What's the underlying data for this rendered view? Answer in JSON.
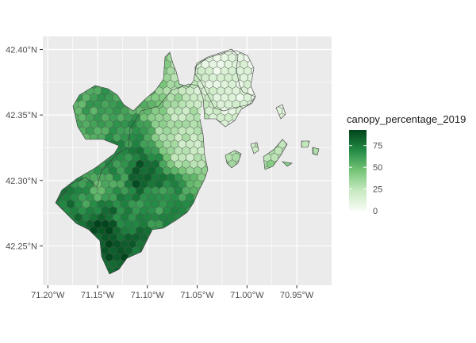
{
  "chart_data": {
    "type": "heatmap",
    "subtype": "hexbin-choropleth-map",
    "title": "",
    "xlabel": "",
    "ylabel": "",
    "x_ticks": [
      "71.20°W",
      "71.15°W",
      "71.10°W",
      "71.05°W",
      "71.00°W",
      "70.95°W"
    ],
    "x_tick_values": [
      -71.2,
      -71.15,
      -71.1,
      -71.05,
      -71.0,
      -70.95
    ],
    "y_ticks": [
      "42.40°N",
      "42.35°N",
      "42.30°N",
      "42.25°N"
    ],
    "y_tick_values": [
      42.4,
      42.35,
      42.3,
      42.25
    ],
    "xlim": [
      -71.205,
      -70.915
    ],
    "ylim": [
      42.22,
      42.41
    ],
    "grid": true,
    "panel_background": "#ebebeb",
    "grid_color": "#ffffff",
    "cell_border_color": "#555555",
    "legend": {
      "title": "canopy_percentage_2019",
      "ticks": [
        "0",
        "25",
        "50",
        "75"
      ],
      "tick_values": [
        0,
        25,
        50,
        75
      ],
      "range": [
        0,
        93
      ],
      "placement": "right",
      "colors": [
        "#f7fcf5",
        "#c7e9c0",
        "#74c476",
        "#238b45",
        "#00441b"
      ]
    },
    "hotspots": [
      {
        "lon": -71.14,
        "lat": 42.265,
        "value": 90
      },
      {
        "lon": -71.135,
        "lat": 42.26,
        "value": 88
      },
      {
        "lon": -71.125,
        "lat": 42.27,
        "value": 70
      },
      {
        "lon": -71.11,
        "lat": 42.303,
        "value": 88
      },
      {
        "lon": -71.128,
        "lat": 42.31,
        "value": 68
      },
      {
        "lon": -71.13,
        "lat": 42.3,
        "value": 62
      },
      {
        "lon": -71.185,
        "lat": 42.288,
        "value": 75
      },
      {
        "lon": -71.165,
        "lat": 42.298,
        "value": 68
      },
      {
        "lon": -71.152,
        "lat": 42.295,
        "value": 55
      },
      {
        "lon": -71.095,
        "lat": 42.283,
        "value": 65
      },
      {
        "lon": -71.172,
        "lat": 42.343,
        "value": 58
      },
      {
        "lon": -71.06,
        "lat": 42.33,
        "value": 25
      },
      {
        "lon": -71.01,
        "lat": 42.37,
        "value": 10
      }
    ]
  }
}
